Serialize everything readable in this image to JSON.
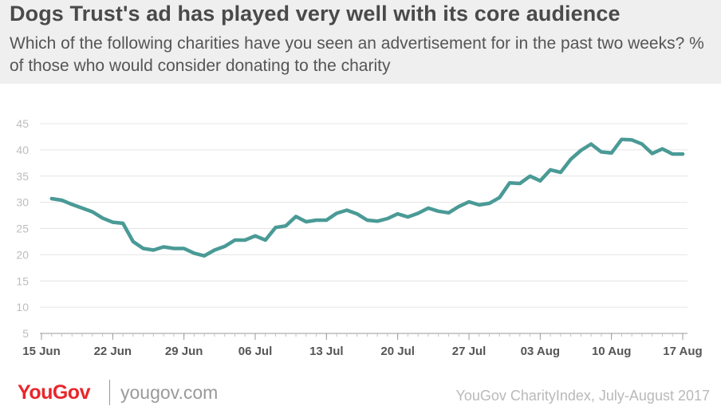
{
  "header": {
    "title": "Dogs Trust's ad has played very well with its core audience",
    "subtitle": "Which of the following charities have you seen an advertisement for in the past two weeks? % of those who would consider donating to the charity"
  },
  "footer": {
    "logo": "YouGov",
    "site": "yougov.com",
    "source": "YouGov CharityIndex, July-August 2017"
  },
  "colors": {
    "line": "#4a9a96",
    "grid": "#e4e4e4",
    "header_bg": "#efefef",
    "logo": "#e8262b"
  },
  "chart_data": {
    "type": "line",
    "title": "Dogs Trust's ad has played very well with its core audience",
    "ylim": [
      5,
      45
    ],
    "yticks": [
      5,
      10,
      15,
      20,
      25,
      30,
      35,
      40,
      45
    ],
    "grid": true,
    "xlim": [
      "2017-06-15",
      "2017-08-17"
    ],
    "xticks": [
      {
        "date": "2017-06-15",
        "label": "15 Jun"
      },
      {
        "date": "2017-06-22",
        "label": "22 Jun"
      },
      {
        "date": "2017-06-29",
        "label": "29 Jun"
      },
      {
        "date": "2017-07-06",
        "label": "06 Jul"
      },
      {
        "date": "2017-07-13",
        "label": "13 Jul"
      },
      {
        "date": "2017-07-20",
        "label": "20 Jul"
      },
      {
        "date": "2017-07-27",
        "label": "27 Jul"
      },
      {
        "date": "2017-08-03",
        "label": "03 Aug"
      },
      {
        "date": "2017-08-10",
        "label": "10 Aug"
      },
      {
        "date": "2017-08-17",
        "label": "17 Aug"
      }
    ],
    "series": [
      {
        "points": [
          {
            "x": "2017-06-16",
            "y": 30.7
          },
          {
            "x": "2017-06-17",
            "y": 30.4
          },
          {
            "x": "2017-06-18",
            "y": 29.6
          },
          {
            "x": "2017-06-19",
            "y": 28.9
          },
          {
            "x": "2017-06-20",
            "y": 28.2
          },
          {
            "x": "2017-06-21",
            "y": 27.0
          },
          {
            "x": "2017-06-22",
            "y": 26.2
          },
          {
            "x": "2017-06-23",
            "y": 26.0
          },
          {
            "x": "2017-06-24",
            "y": 22.5
          },
          {
            "x": "2017-06-25",
            "y": 21.2
          },
          {
            "x": "2017-06-26",
            "y": 20.9
          },
          {
            "x": "2017-06-27",
            "y": 21.5
          },
          {
            "x": "2017-06-28",
            "y": 21.2
          },
          {
            "x": "2017-06-29",
            "y": 21.2
          },
          {
            "x": "2017-06-30",
            "y": 20.3
          },
          {
            "x": "2017-07-01",
            "y": 19.8
          },
          {
            "x": "2017-07-02",
            "y": 20.9
          },
          {
            "x": "2017-07-03",
            "y": 21.6
          },
          {
            "x": "2017-07-04",
            "y": 22.8
          },
          {
            "x": "2017-07-05",
            "y": 22.8
          },
          {
            "x": "2017-07-06",
            "y": 23.6
          },
          {
            "x": "2017-07-07",
            "y": 22.8
          },
          {
            "x": "2017-07-08",
            "y": 25.2
          },
          {
            "x": "2017-07-09",
            "y": 25.5
          },
          {
            "x": "2017-07-10",
            "y": 27.3
          },
          {
            "x": "2017-07-11",
            "y": 26.3
          },
          {
            "x": "2017-07-12",
            "y": 26.6
          },
          {
            "x": "2017-07-13",
            "y": 26.6
          },
          {
            "x": "2017-07-14",
            "y": 27.9
          },
          {
            "x": "2017-07-15",
            "y": 28.5
          },
          {
            "x": "2017-07-16",
            "y": 27.8
          },
          {
            "x": "2017-07-17",
            "y": 26.6
          },
          {
            "x": "2017-07-18",
            "y": 26.4
          },
          {
            "x": "2017-07-19",
            "y": 26.9
          },
          {
            "x": "2017-07-20",
            "y": 27.8
          },
          {
            "x": "2017-07-21",
            "y": 27.2
          },
          {
            "x": "2017-07-22",
            "y": 27.9
          },
          {
            "x": "2017-07-23",
            "y": 28.9
          },
          {
            "x": "2017-07-24",
            "y": 28.3
          },
          {
            "x": "2017-07-25",
            "y": 28.0
          },
          {
            "x": "2017-07-26",
            "y": 29.2
          },
          {
            "x": "2017-07-27",
            "y": 30.1
          },
          {
            "x": "2017-07-28",
            "y": 29.5
          },
          {
            "x": "2017-07-29",
            "y": 29.8
          },
          {
            "x": "2017-07-30",
            "y": 30.9
          },
          {
            "x": "2017-07-31",
            "y": 33.7
          },
          {
            "x": "2017-08-01",
            "y": 33.6
          },
          {
            "x": "2017-08-02",
            "y": 35.0
          },
          {
            "x": "2017-08-03",
            "y": 34.1
          },
          {
            "x": "2017-08-04",
            "y": 36.2
          },
          {
            "x": "2017-08-05",
            "y": 35.7
          },
          {
            "x": "2017-08-06",
            "y": 38.2
          },
          {
            "x": "2017-08-07",
            "y": 39.9
          },
          {
            "x": "2017-08-08",
            "y": 41.1
          },
          {
            "x": "2017-08-09",
            "y": 39.6
          },
          {
            "x": "2017-08-10",
            "y": 39.4
          },
          {
            "x": "2017-08-11",
            "y": 42.0
          },
          {
            "x": "2017-08-12",
            "y": 41.9
          },
          {
            "x": "2017-08-13",
            "y": 41.1
          },
          {
            "x": "2017-08-14",
            "y": 39.3
          },
          {
            "x": "2017-08-15",
            "y": 40.2
          },
          {
            "x": "2017-08-16",
            "y": 39.2
          },
          {
            "x": "2017-08-17",
            "y": 39.2
          }
        ]
      }
    ]
  }
}
